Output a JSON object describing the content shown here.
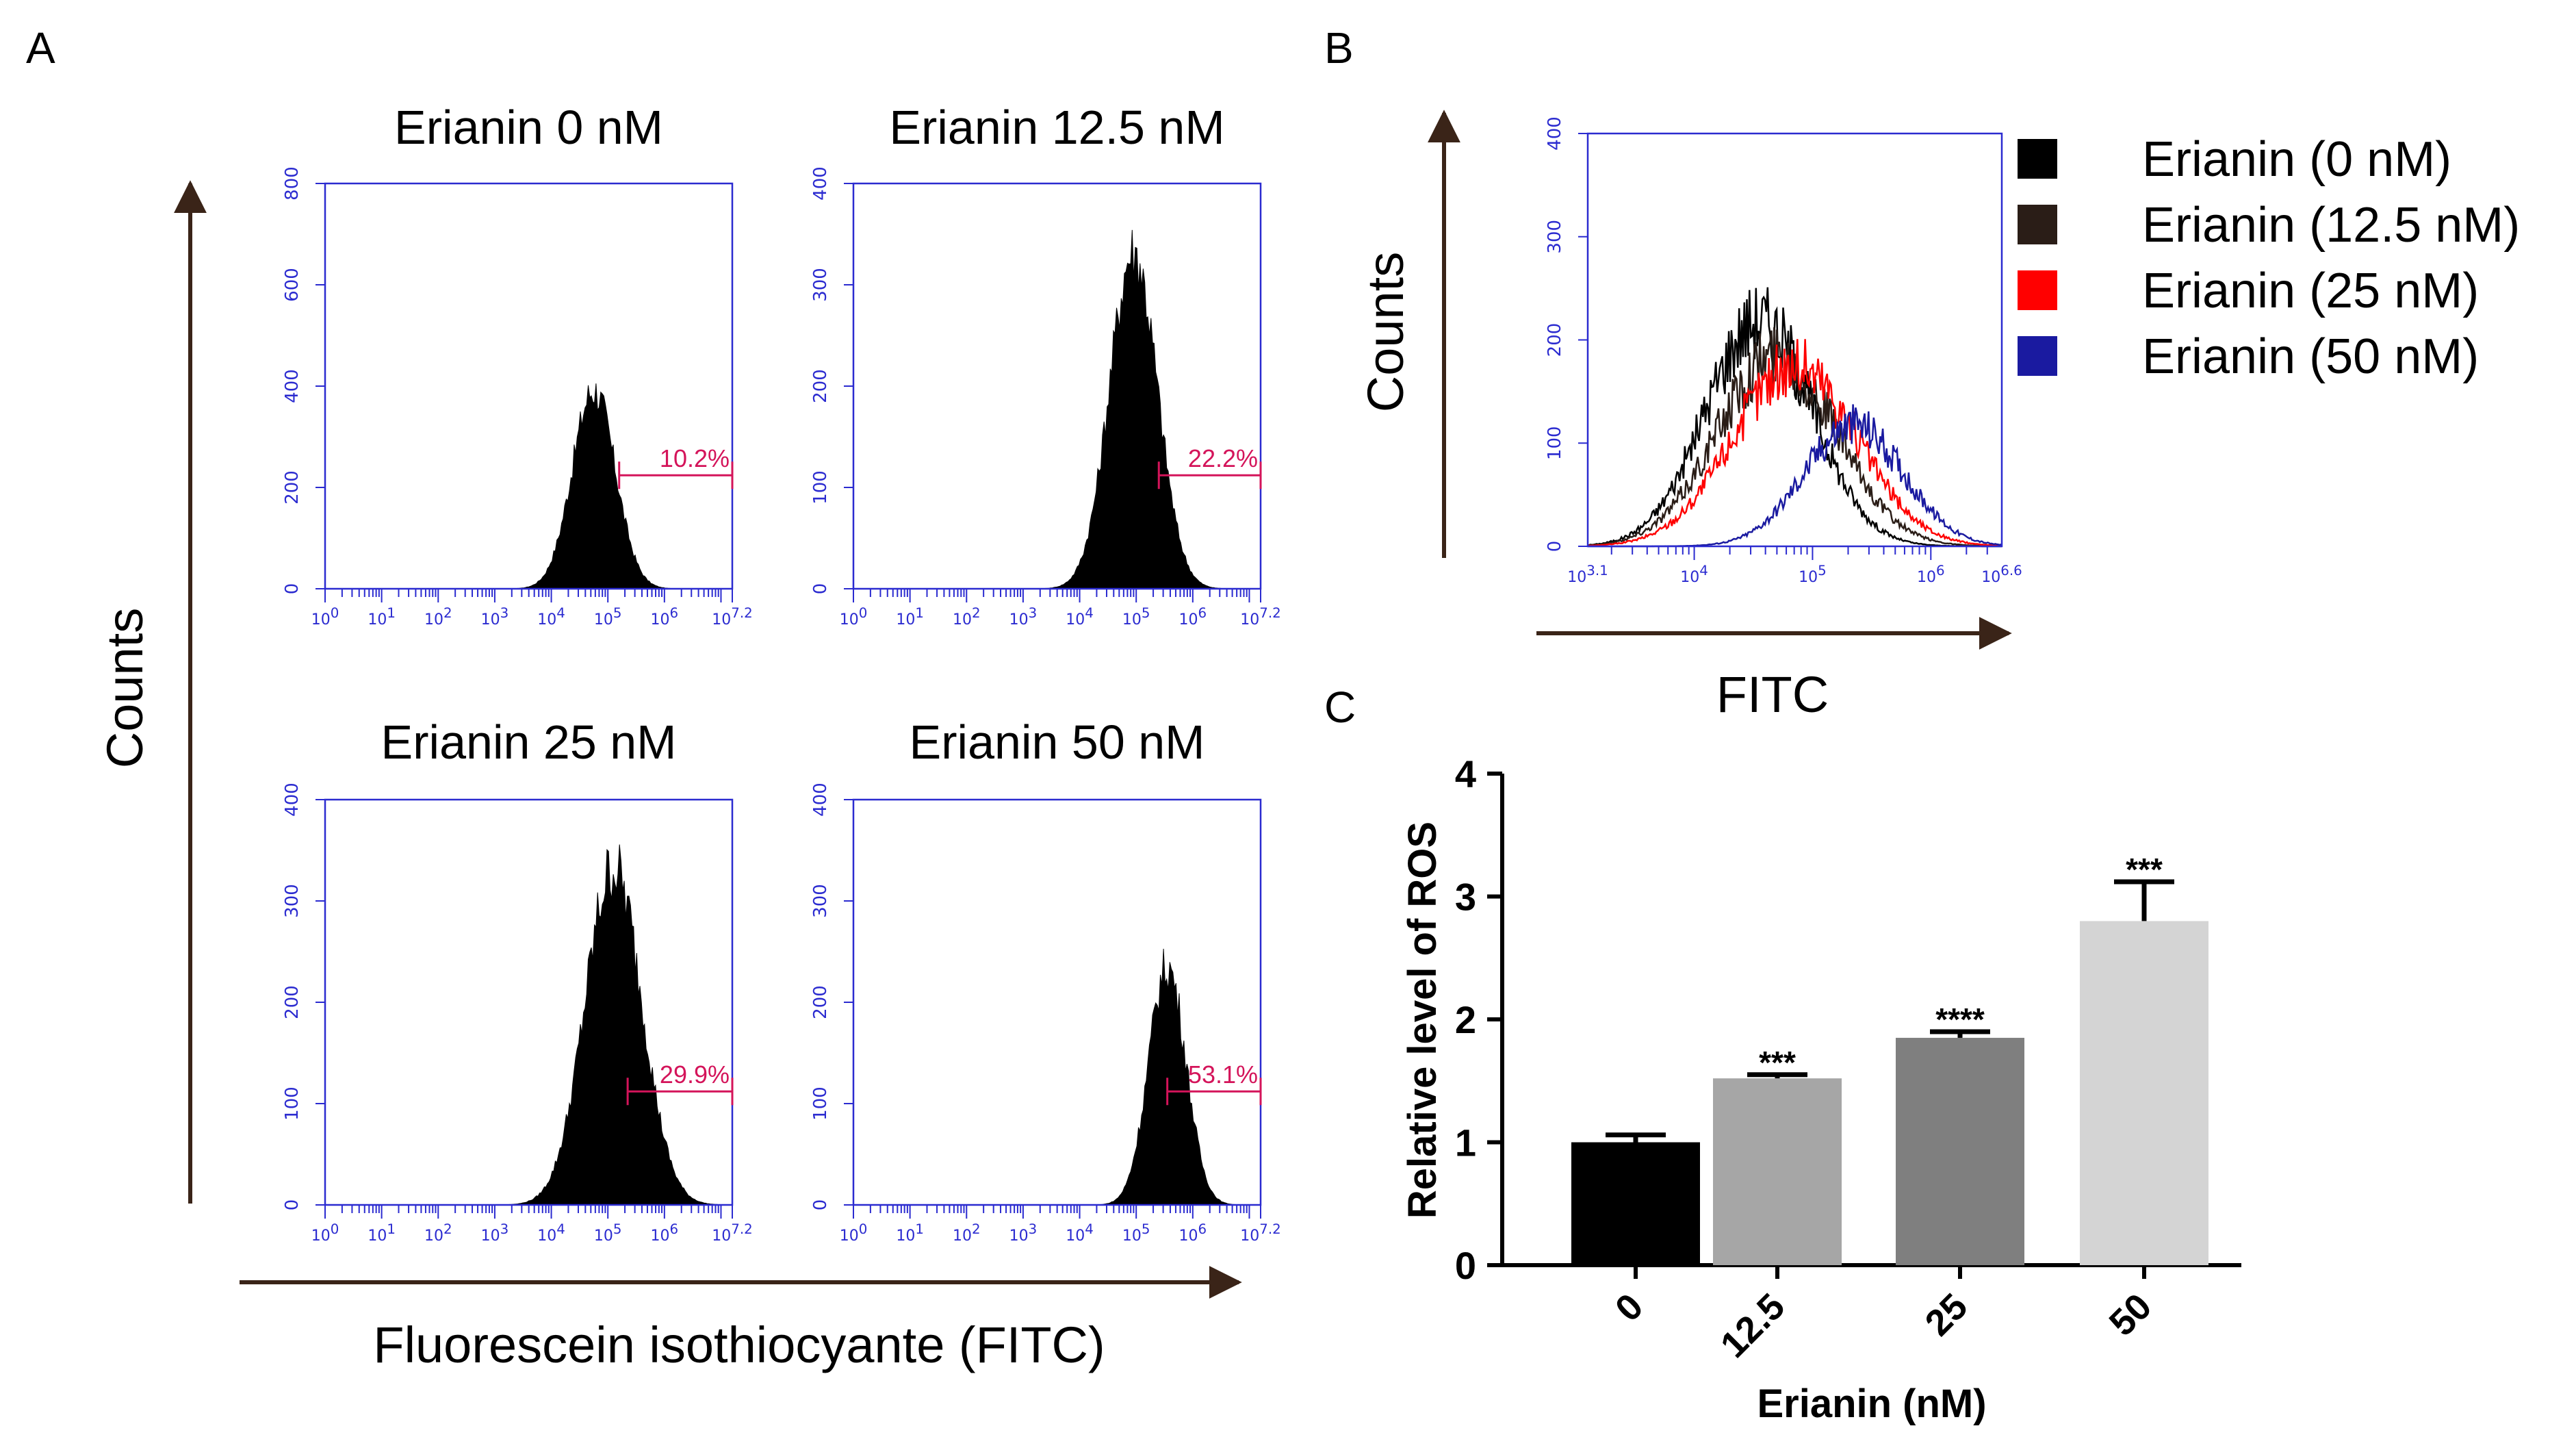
{
  "panel_labels": [
    "A",
    "B",
    "C"
  ],
  "panel_a": {
    "x_axis_label": "Fluorescein isothiocyante (FITC)",
    "y_axis_label": "Counts",
    "x_tick_labels": [
      "10^0",
      "10^1",
      "10^2",
      "10^3",
      "10^4",
      "10^5",
      "10^6",
      "10^7.2"
    ]
  },
  "panel_b": {
    "x_axis_label": "FITC",
    "y_axis_label": "Counts"
  },
  "chart_data": [
    {
      "id": "hist-0",
      "type": "area",
      "title": "Erianin 0 nM",
      "xscale": "log",
      "xlim": [
        0,
        7.2
      ],
      "ylim": [
        0,
        800
      ],
      "yticks": [
        0,
        200,
        400,
        600,
        800
      ],
      "peak": {
        "log_center": 4.75,
        "log_sd": 0.38,
        "max_count": 400
      },
      "gate": {
        "label": "10.2%",
        "from_log": 5.2,
        "to_log": 7.2
      }
    },
    {
      "id": "hist-12",
      "type": "area",
      "title": "Erianin 12.5 nM",
      "xscale": "log",
      "xlim": [
        0,
        7.2
      ],
      "ylim": [
        0,
        400
      ],
      "yticks": [
        0,
        100,
        200,
        300,
        400
      ],
      "peak": {
        "log_center": 4.95,
        "log_sd": 0.42,
        "max_count": 340
      },
      "gate": {
        "label": "22.2%",
        "from_log": 5.4,
        "to_log": 7.2
      }
    },
    {
      "id": "hist-25",
      "type": "area",
      "title": "Erianin 25 nM",
      "xscale": "log",
      "xlim": [
        0,
        7.2
      ],
      "ylim": [
        0,
        400
      ],
      "yticks": [
        0,
        100,
        200,
        300,
        400
      ],
      "peak": {
        "log_center": 5.1,
        "log_sd": 0.5,
        "max_count": 340
      },
      "gate": {
        "label": "29.9%",
        "from_log": 5.35,
        "to_log": 7.2
      }
    },
    {
      "id": "hist-50",
      "type": "area",
      "title": "Erianin 50 nM",
      "xscale": "log",
      "xlim": [
        0,
        7.2
      ],
      "ylim": [
        0,
        400
      ],
      "yticks": [
        0,
        100,
        200,
        300,
        400
      ],
      "peak": {
        "log_center": 5.55,
        "log_sd": 0.33,
        "max_count": 240
      },
      "gate": {
        "label": "53.1%",
        "from_log": 5.55,
        "to_log": 7.2
      }
    },
    {
      "id": "overlay",
      "type": "line",
      "xscale": "log",
      "xlim": [
        3.1,
        6.6
      ],
      "ylim": [
        0,
        400
      ],
      "yticks": [
        0,
        100,
        200,
        300,
        400
      ],
      "x_tick_labels": [
        "10^3.1",
        "10^4",
        "10^5",
        "10^6",
        "10^6.6"
      ],
      "series": [
        {
          "name": "Erianin (0 nM)",
          "color": "#000000",
          "log_center": 4.55,
          "log_sd": 0.45,
          "max_count": 225
        },
        {
          "name": "Erianin (12.5 nM)",
          "color": "#2a1d17",
          "log_center": 4.7,
          "log_sd": 0.5,
          "max_count": 190
        },
        {
          "name": "Erianin (25 nM)",
          "color": "#ff0000",
          "log_center": 4.85,
          "log_sd": 0.52,
          "max_count": 180
        },
        {
          "name": "Erianin (50 nM)",
          "color": "#1a1aa0",
          "log_center": 5.35,
          "log_sd": 0.42,
          "max_count": 120
        }
      ]
    },
    {
      "id": "bars",
      "type": "bar",
      "xlabel": "Erianin (nM)",
      "ylabel": "Relative level of ROS",
      "ylim": [
        0,
        4
      ],
      "yticks": [
        0,
        1,
        2,
        3,
        4
      ],
      "categories": [
        "0",
        "12.5",
        "25",
        "50"
      ],
      "values": [
        1.0,
        1.52,
        1.85,
        2.8
      ],
      "errors": [
        0.06,
        0.03,
        0.05,
        0.32
      ],
      "significance": [
        "",
        "***",
        "****",
        "***"
      ],
      "colors": [
        "#000000",
        "#a6a6a6",
        "#7f7f7f",
        "#d4d4d4"
      ]
    }
  ]
}
